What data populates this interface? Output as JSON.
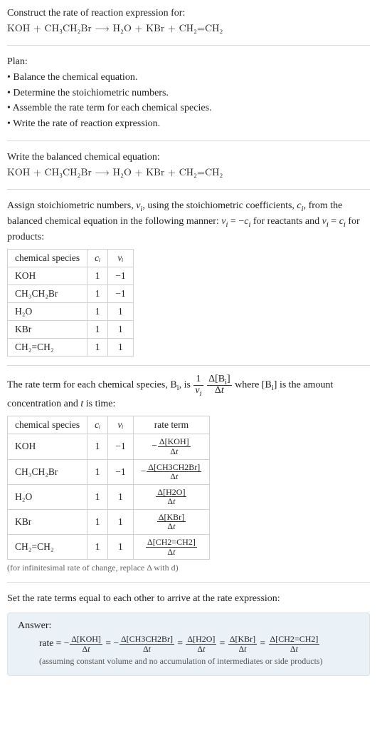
{
  "text": {
    "construct": "Construct the rate of reaction expression for:",
    "plan_head": "Plan:",
    "plan1": "Balance the chemical equation.",
    "plan2": "Determine the stoichiometric numbers.",
    "plan3": "Assemble the rate term for each chemical species.",
    "plan4": "Write the rate of reaction expression.",
    "balanced_head": "Write the balanced chemical equation:",
    "assign_part1": "Assign stoichiometric numbers, ",
    "assign_sym_nu": "ν",
    "assign_part2": ", using the stoichiometric coefficients, ",
    "assign_sym_c": "c",
    "assign_part3": ", from the balanced chemical equation in the following manner: ",
    "assign_part4": " for reactants and ",
    "assign_part5": " for products:",
    "rate_term_part1": "The rate term for each chemical species, B",
    "rate_term_part2": ", is ",
    "rate_term_part3": " where [B",
    "rate_term_part4": "] is the amount concentration and ",
    "rate_term_part5": " is time:",
    "t_var": "t",
    "inf_note": "(for infinitesimal rate of change, replace Δ with d)",
    "set_equal": "Set the rate terms equal to each other to arrive at the rate expression:",
    "answer_label": "Answer:",
    "rate_word": "rate",
    "assume": "(assuming constant volume and no accumulation of intermediates or side products)"
  },
  "equation": {
    "text": "KOH + CH₃CH₂Br  ⟶  H₂O + KBr + CH₂=CH₂"
  },
  "species": {
    "koh": "KOH",
    "etbr": "CH₃CH₂Br",
    "h2o": "H₂O",
    "kbr": "KBr",
    "ethene": "CH₂=CH₂"
  },
  "table1": {
    "h_species": "chemical species",
    "h_ci": "cᵢ",
    "h_nui": "νᵢ",
    "rows": [
      {
        "name": "KOH",
        "ci": "1",
        "nui": "−1"
      },
      {
        "name": "CH₃CH₂Br",
        "ci": "1",
        "nui": "−1"
      },
      {
        "name": "H₂O",
        "ci": "1",
        "nui": "1"
      },
      {
        "name": "KBr",
        "ci": "1",
        "nui": "1"
      },
      {
        "name": "CH₂=CH₂",
        "ci": "1",
        "nui": "1"
      }
    ]
  },
  "table2": {
    "h_species": "chemical species",
    "h_ci": "cᵢ",
    "h_nui": "νᵢ",
    "h_rate": "rate term",
    "rows": [
      {
        "name": "KOH",
        "ci": "1",
        "nui": "−1",
        "neg": true,
        "num": "Δ[KOH]"
      },
      {
        "name": "CH₃CH₂Br",
        "ci": "1",
        "nui": "−1",
        "neg": true,
        "num": "Δ[CH3CH2Br]"
      },
      {
        "name": "H₂O",
        "ci": "1",
        "nui": "1",
        "neg": false,
        "num": "Δ[H2O]"
      },
      {
        "name": "KBr",
        "ci": "1",
        "nui": "1",
        "neg": false,
        "num": "Δ[KBr]"
      },
      {
        "name": "CH₂=CH₂",
        "ci": "1",
        "nui": "1",
        "neg": false,
        "num": "Δ[CH2=CH2]"
      }
    ]
  },
  "answer_eq_parts": [
    {
      "neg": true,
      "num": "Δ[KOH]"
    },
    {
      "neg": true,
      "num": "Δ[CH3CH2Br]"
    },
    {
      "neg": false,
      "num": "Δ[H2O]"
    },
    {
      "neg": false,
      "num": "Δ[KBr]"
    },
    {
      "neg": false,
      "num": "Δ[CH2=CH2]"
    }
  ],
  "style": {
    "bg": "#ffffff",
    "text_color": "#222222",
    "hr_color": "#d9d9d9",
    "table_border": "#d0d0d0",
    "answer_bg": "#eaf1f7",
    "answer_border": "#d6e2ec",
    "note_color": "#666666"
  }
}
